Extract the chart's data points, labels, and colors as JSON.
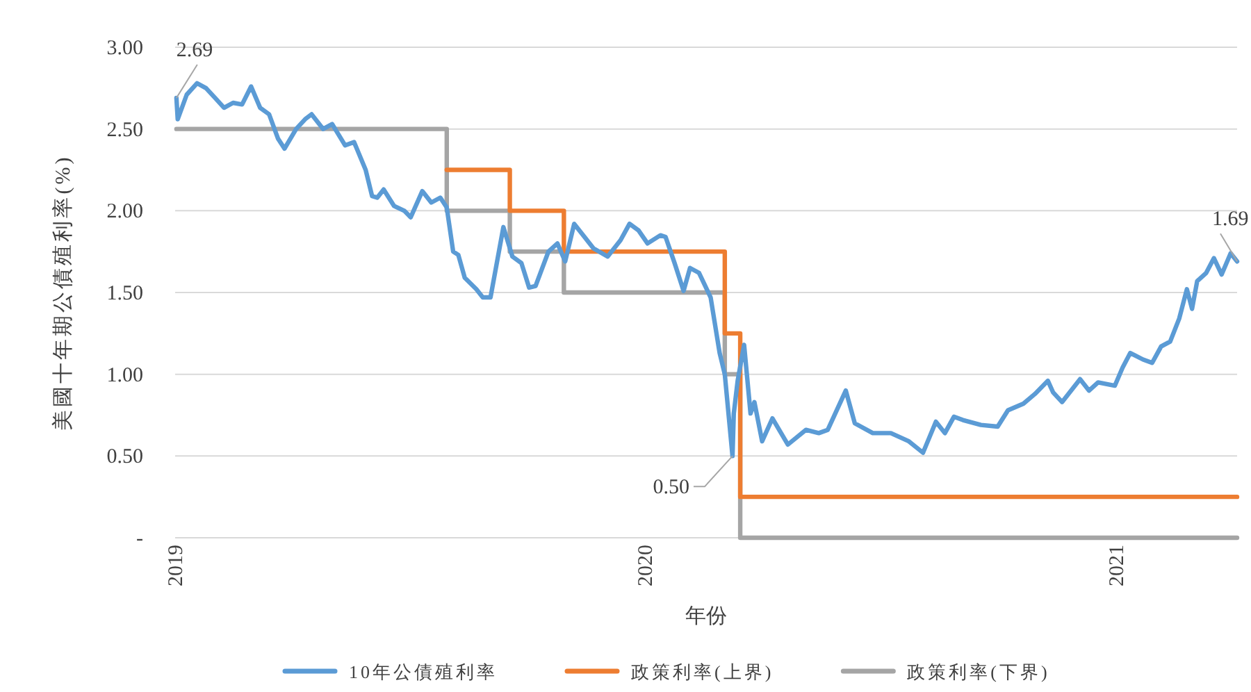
{
  "chart_data": {
    "type": "line",
    "xlabel": "年份",
    "ylabel": "美國十年期公債殖利率(%)",
    "xlim": [
      "2019-01-01",
      "2021-04-05"
    ],
    "xticks": [
      {
        "value": "2019-01-01",
        "label": "2019"
      },
      {
        "value": "2020-01-01",
        "label": "2020"
      },
      {
        "value": "2021-01-01",
        "label": "2021"
      }
    ],
    "ylim": [
      0,
      3
    ],
    "yticks": [
      {
        "value": 0,
        "label": "-"
      },
      {
        "value": 0.5,
        "label": "0.50"
      },
      {
        "value": 1,
        "label": "1.00"
      },
      {
        "value": 1.5,
        "label": "1.50"
      },
      {
        "value": 2,
        "label": "2.00"
      },
      {
        "value": 2.5,
        "label": "2.50"
      },
      {
        "value": 3,
        "label": "3.00"
      }
    ],
    "grid": "y",
    "legend": "bottom",
    "marker": "none",
    "series": [
      {
        "name": "10年公債殖利率",
        "color": "#5b9bd5",
        "x": [
          "2019-01-02",
          "2019-01-03",
          "2019-01-10",
          "2019-01-18",
          "2019-01-25",
          "2019-02-01",
          "2019-02-08",
          "2019-02-15",
          "2019-02-22",
          "2019-03-01",
          "2019-03-08",
          "2019-03-15",
          "2019-03-22",
          "2019-03-27",
          "2019-04-05",
          "2019-04-12",
          "2019-04-17",
          "2019-04-26",
          "2019-05-03",
          "2019-05-13",
          "2019-05-20",
          "2019-05-29",
          "2019-06-03",
          "2019-06-07",
          "2019-06-12",
          "2019-06-20",
          "2019-06-28",
          "2019-07-03",
          "2019-07-12",
          "2019-07-19",
          "2019-07-26",
          "2019-07-31",
          "2019-08-05",
          "2019-08-09",
          "2019-08-14",
          "2019-08-23",
          "2019-08-28",
          "2019-09-03",
          "2019-09-13",
          "2019-09-20",
          "2019-09-27",
          "2019-10-03",
          "2019-10-08",
          "2019-10-18",
          "2019-10-25",
          "2019-10-31",
          "2019-11-07",
          "2019-11-15",
          "2019-11-22",
          "2019-12-03",
          "2019-12-13",
          "2019-12-20",
          "2019-12-27",
          "2020-01-03",
          "2020-01-13",
          "2020-01-17",
          "2020-01-24",
          "2020-01-31",
          "2020-02-05",
          "2020-02-12",
          "2020-02-21",
          "2020-02-28",
          "2020-03-03",
          "2020-03-09",
          "2020-03-10",
          "2020-03-13",
          "2020-03-18",
          "2020-03-23",
          "2020-03-26",
          "2020-04-01",
          "2020-04-09",
          "2020-04-21",
          "2020-05-05",
          "2020-05-15",
          "2020-05-22",
          "2020-06-05",
          "2020-06-12",
          "2020-06-26",
          "2020-07-10",
          "2020-07-24",
          "2020-08-04",
          "2020-08-14",
          "2020-08-21",
          "2020-08-28",
          "2020-09-04",
          "2020-09-18",
          "2020-10-01",
          "2020-10-09",
          "2020-10-21",
          "2020-10-30",
          "2020-11-09",
          "2020-11-13",
          "2020-11-20",
          "2020-12-04",
          "2020-12-11",
          "2020-12-18",
          "2020-12-31",
          "2021-01-06",
          "2021-01-12",
          "2021-01-22",
          "2021-01-29",
          "2021-02-05",
          "2021-02-12",
          "2021-02-19",
          "2021-02-25",
          "2021-03-01",
          "2021-03-05",
          "2021-03-12",
          "2021-03-18",
          "2021-03-24",
          "2021-03-31",
          "2021-04-02",
          "2021-04-05"
        ],
        "values": [
          2.69,
          2.56,
          2.71,
          2.78,
          2.75,
          2.69,
          2.63,
          2.66,
          2.65,
          2.76,
          2.63,
          2.59,
          2.44,
          2.38,
          2.5,
          2.56,
          2.59,
          2.5,
          2.53,
          2.4,
          2.42,
          2.25,
          2.09,
          2.08,
          2.13,
          2.03,
          2.0,
          1.96,
          2.12,
          2.05,
          2.08,
          2.02,
          1.75,
          1.73,
          1.59,
          1.52,
          1.47,
          1.47,
          1.9,
          1.72,
          1.68,
          1.53,
          1.54,
          1.75,
          1.8,
          1.69,
          1.92,
          1.84,
          1.77,
          1.72,
          1.82,
          1.92,
          1.88,
          1.8,
          1.85,
          1.84,
          1.68,
          1.51,
          1.65,
          1.62,
          1.47,
          1.13,
          1.0,
          0.5,
          0.76,
          0.96,
          1.18,
          0.76,
          0.83,
          0.59,
          0.73,
          0.57,
          0.66,
          0.64,
          0.66,
          0.9,
          0.7,
          0.64,
          0.64,
          0.59,
          0.52,
          0.71,
          0.64,
          0.74,
          0.72,
          0.69,
          0.68,
          0.78,
          0.82,
          0.88,
          0.96,
          0.89,
          0.83,
          0.97,
          0.9,
          0.95,
          0.93,
          1.04,
          1.13,
          1.09,
          1.07,
          1.17,
          1.2,
          1.34,
          1.52,
          1.4,
          1.57,
          1.62,
          1.71,
          1.61,
          1.74,
          1.72,
          1.69
        ]
      },
      {
        "name": "政策利率(上界)",
        "color": "#ed7d31",
        "type": "step",
        "x": [
          "2019-07-31",
          "2019-09-18",
          "2019-10-30",
          "2020-03-03",
          "2020-03-15",
          "2021-04-05"
        ],
        "values": [
          2.25,
          2.0,
          1.75,
          1.25,
          0.25,
          0.25
        ]
      },
      {
        "name": "政策利率(下界)",
        "color": "#a5a5a5",
        "type": "step",
        "x": [
          "2019-01-02",
          "2019-07-31",
          "2019-09-18",
          "2019-10-30",
          "2020-03-03",
          "2020-03-15",
          "2021-04-05"
        ],
        "values": [
          2.5,
          2.0,
          1.75,
          1.5,
          1.0,
          0,
          0
        ]
      }
    ],
    "annotations": [
      {
        "text": "2.69",
        "x": "2019-01-02",
        "y": 2.69
      },
      {
        "text": "0.50",
        "x": "2020-03-09",
        "y": 0.5
      },
      {
        "text": "1.69",
        "x": "2021-04-05",
        "y": 1.69
      }
    ]
  }
}
